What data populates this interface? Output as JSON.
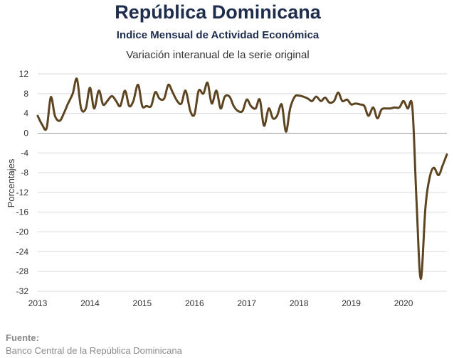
{
  "header": {
    "title": "República Dominicana",
    "subtitle": "Indice Mensual de  Actividad Económica",
    "subtitle2": "Variación interanual de la serie original"
  },
  "source": {
    "label": "Fuente:",
    "text": "Banco Central de la República Dominicana"
  },
  "colors": {
    "line": "#5c4520",
    "grid": "#d9d9d9",
    "zero": "#9a9a9a"
  },
  "chart_data": {
    "type": "line",
    "title": "República Dominicana",
    "ylabel": "Porcentajes",
    "xlabel": "",
    "ylim": [
      -32,
      12
    ],
    "yticks": [
      12,
      8,
      4,
      0,
      -4,
      -8,
      -12,
      -16,
      -20,
      -24,
      -28,
      -32
    ],
    "xlim": [
      2013.0,
      2020.83
    ],
    "xticks": [
      {
        "value": 2013,
        "label": "2013"
      },
      {
        "value": 2014,
        "label": "2014"
      },
      {
        "value": 2015,
        "label": "2015"
      },
      {
        "value": 2016,
        "label": "2016"
      },
      {
        "value": 2017,
        "label": "2017"
      },
      {
        "value": 2018,
        "label": "2018"
      },
      {
        "value": 2019,
        "label": "2019"
      },
      {
        "value": 2020,
        "label": "2020"
      }
    ],
    "grid": true,
    "series": [
      {
        "x": [
          2013.0,
          2013.08,
          2013.17,
          2013.25,
          2013.33,
          2013.42,
          2013.5,
          2013.58,
          2013.67,
          2013.75,
          2013.83,
          2013.92,
          2014.0,
          2014.08,
          2014.17,
          2014.25,
          2014.33,
          2014.42,
          2014.5,
          2014.58,
          2014.67,
          2014.75,
          2014.83,
          2014.92,
          2015.0,
          2015.08,
          2015.17,
          2015.25,
          2015.33,
          2015.42,
          2015.5,
          2015.58,
          2015.67,
          2015.75,
          2015.83,
          2015.92,
          2016.0,
          2016.08,
          2016.17,
          2016.25,
          2016.33,
          2016.42,
          2016.5,
          2016.58,
          2016.67,
          2016.75,
          2016.83,
          2016.92,
          2017.0,
          2017.08,
          2017.17,
          2017.25,
          2017.33,
          2017.42,
          2017.5,
          2017.58,
          2017.67,
          2017.75,
          2017.83,
          2017.92,
          2018.0,
          2018.08,
          2018.17,
          2018.25,
          2018.33,
          2018.42,
          2018.5,
          2018.58,
          2018.67,
          2018.75,
          2018.83,
          2018.92,
          2019.0,
          2019.08,
          2019.17,
          2019.25,
          2019.33,
          2019.42,
          2019.5,
          2019.58,
          2019.67,
          2019.75,
          2019.83,
          2019.92,
          2020.0,
          2020.08,
          2020.17,
          2020.25,
          2020.33,
          2020.42,
          2020.5,
          2020.58,
          2020.67,
          2020.75,
          2020.83
        ],
        "values": [
          3.5,
          1.8,
          1.0,
          7.3,
          3.5,
          2.5,
          4.0,
          6.0,
          8.0,
          11.0,
          5.0,
          5.0,
          9.2,
          5.0,
          8.6,
          5.8,
          6.5,
          7.5,
          6.5,
          5.5,
          8.6,
          5.5,
          6.5,
          9.8,
          5.5,
          5.5,
          5.5,
          8.3,
          7.0,
          7.0,
          9.8,
          8.3,
          6.5,
          6.0,
          8.6,
          4.5,
          3.8,
          8.6,
          8.0,
          10.2,
          6.0,
          8.6,
          5.0,
          7.4,
          7.4,
          5.5,
          4.5,
          4.5,
          6.8,
          5.5,
          5.0,
          6.8,
          1.5,
          5.0,
          3.0,
          3.5,
          5.8,
          0.3,
          5.0,
          7.4,
          7.6,
          7.4,
          7.0,
          6.5,
          7.4,
          6.5,
          7.2,
          6.2,
          6.5,
          8.2,
          6.5,
          6.8,
          5.8,
          6.0,
          5.8,
          5.5,
          3.5,
          5.2,
          3.0,
          4.8,
          5.0,
          5.0,
          5.2,
          5.2,
          6.5,
          5.0,
          5.2,
          -14.0,
          -29.5,
          -15.0,
          -9.0,
          -7.0,
          -8.5,
          -6.5,
          -4.3
        ]
      }
    ]
  }
}
